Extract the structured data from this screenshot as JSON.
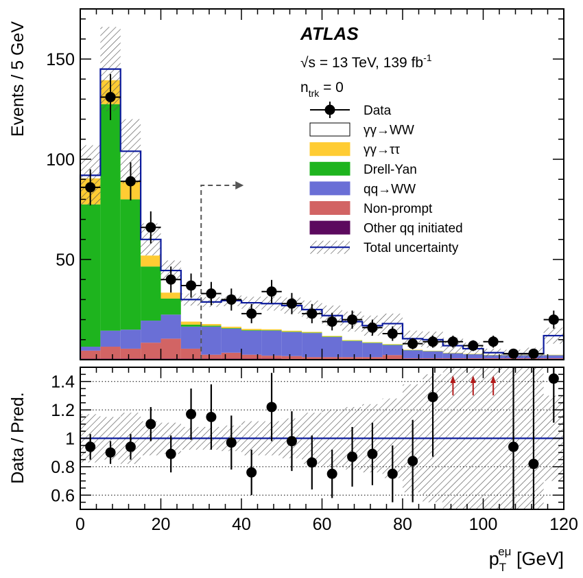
{
  "chart_data": [
    {
      "type": "bar",
      "stacked": true,
      "x_bins": [
        [
          0,
          5
        ],
        [
          5,
          10
        ],
        [
          10,
          15
        ],
        [
          15,
          20
        ],
        [
          20,
          25
        ],
        [
          25,
          30
        ],
        [
          30,
          35
        ],
        [
          35,
          40
        ],
        [
          40,
          45
        ],
        [
          45,
          50
        ],
        [
          50,
          55
        ],
        [
          55,
          60
        ],
        [
          60,
          65
        ],
        [
          65,
          70
        ],
        [
          70,
          75
        ],
        [
          75,
          80
        ],
        [
          80,
          85
        ],
        [
          85,
          90
        ],
        [
          90,
          95
        ],
        [
          95,
          100
        ],
        [
          100,
          105
        ],
        [
          105,
          110
        ],
        [
          110,
          115
        ],
        [
          115,
          120
        ]
      ],
      "series": [
        {
          "name": "Other qq initiated",
          "color": "#5c0a5e",
          "values": [
            0.5,
            0.5,
            0.5,
            0.5,
            0.5,
            0.5,
            0.5,
            0.5,
            0.5,
            0.5,
            0.3,
            0.3,
            0.3,
            0.3,
            0.3,
            0.3,
            0.2,
            0.2,
            0.2,
            0.2,
            0.2,
            0.2,
            0.2,
            0.2
          ]
        },
        {
          "name": "Non-prompt",
          "color": "#d26464",
          "values": [
            4,
            6,
            5,
            8,
            10,
            5,
            2,
            3,
            2,
            1.5,
            1.5,
            1,
            1,
            1,
            1,
            2,
            0.5,
            0.5,
            0.5,
            0.5,
            0.5,
            0.5,
            0.5,
            0.5
          ]
        },
        {
          "name": "qq→WW",
          "color": "#6a6fd6",
          "values": [
            2,
            8,
            9.5,
            11,
            12,
            11,
            14,
            12,
            12,
            12.5,
            12,
            12,
            10,
            8,
            7,
            5,
            4,
            3.5,
            2.5,
            2,
            1.5,
            1.5,
            1.5,
            1.5
          ]
        },
        {
          "name": "Drell-Yan",
          "color": "#1eb41e",
          "values": [
            71,
            113,
            65,
            27,
            8,
            1,
            0.5,
            0.3,
            0.3,
            0.2,
            0.2,
            0.2,
            0.2,
            0.2,
            0.2,
            0.2,
            0.1,
            0.1,
            0.1,
            0.1,
            0.1,
            0.1,
            0.1,
            0.1
          ]
        },
        {
          "name": "γγ→ττ",
          "color": "#ffcc33",
          "values": [
            13,
            12,
            9,
            5.5,
            3,
            1.5,
            0.8,
            0.7,
            0.6,
            0.5,
            0.5,
            0.4,
            0.4,
            0.3,
            0.3,
            0.3,
            0.2,
            0.2,
            0.2,
            0.2,
            0.2,
            0.2,
            0.2,
            0.2
          ]
        },
        {
          "name": "γγ→WW",
          "color": "#ffffff",
          "values": [
            1.5,
            5.5,
            15,
            8,
            11,
            11,
            11,
            13,
            13,
            12.8,
            12.5,
            11.1,
            10.1,
            9.2,
            8.2,
            10.2,
            5.5,
            5.5,
            3.5,
            2.5,
            1,
            0.5,
            0.5,
            9.5
          ]
        }
      ],
      "total_uncertainty": [
        15,
        21,
        16,
        8,
        5,
        3,
        2.5,
        2.8,
        3,
        3.5,
        4,
        4.5,
        5,
        5,
        5,
        5,
        4,
        4,
        4,
        3,
        2,
        2,
        3,
        4
      ],
      "data": {
        "name": "Data",
        "values": [
          86,
          131,
          89,
          66,
          40,
          37,
          33,
          30,
          23,
          34,
          28,
          23,
          19,
          20,
          16,
          13,
          8,
          9,
          9,
          7,
          9,
          3,
          3,
          20
        ],
        "errors": [
          9,
          11.5,
          9.5,
          8,
          6.5,
          6,
          5.8,
          5.5,
          4.8,
          5.8,
          5.3,
          4.8,
          4.4,
          4.5,
          4,
          3.6,
          2.8,
          3,
          3,
          2.7,
          3,
          1.7,
          1.7,
          4.5
        ]
      },
      "legend": [
        {
          "label": "Data",
          "style": "marker"
        },
        {
          "label": "γγ→WW",
          "style": "box",
          "color": "#ffffff"
        },
        {
          "label": "γγ→ττ",
          "style": "box",
          "color": "#ffcc33"
        },
        {
          "label": "Drell-Yan",
          "style": "box",
          "color": "#1eb41e"
        },
        {
          "label": "qq→WW",
          "style": "box",
          "color": "#6a6fd6"
        },
        {
          "label": "Non-prompt",
          "style": "box",
          "color": "#d26464"
        },
        {
          "label": "Other qq initiated",
          "style": "box",
          "color": "#5c0a5e"
        },
        {
          "label": "Total uncertainty",
          "style": "hatch"
        }
      ],
      "ylabel": "Events / 5 GeV",
      "ylim": [
        0,
        175
      ],
      "yticks": [
        50,
        100,
        150
      ],
      "cut_arrow_x": 30,
      "cut_arrow_y": 87,
      "annotations": {
        "experiment": "ATLAS",
        "energy": "√s = 13 TeV, 139 fb",
        "energy_sup": "-1",
        "ntrk_n": "n",
        "ntrk_sub": "trk",
        "ntrk_rest": " = 0"
      },
      "total_line_color": "#0b1a9c"
    },
    {
      "type": "scatter",
      "ylabel": "Data / Pred.",
      "xlabel_main": "p",
      "xlabel_sub": "T",
      "xlabel_sup": "eμ",
      "xlabel_unit": " [GeV]",
      "xlim": [
        0,
        120
      ],
      "xticks": [
        0,
        20,
        40,
        60,
        80,
        100,
        120
      ],
      "ylim": [
        0.5,
        1.5
      ],
      "yticks": [
        0.6,
        0.8,
        1,
        1.2,
        1.4
      ],
      "ytick_labels": [
        "0.6",
        "0.8",
        "1",
        "1.2",
        "1.4"
      ],
      "x": [
        2.5,
        7.5,
        12.5,
        17.5,
        22.5,
        27.5,
        32.5,
        37.5,
        42.5,
        47.5,
        52.5,
        57.5,
        62.5,
        67.5,
        72.5,
        77.5,
        82.5,
        87.5,
        107.5,
        112.5,
        117.5
      ],
      "ratio": [
        0.94,
        0.9,
        0.94,
        1.1,
        0.89,
        1.17,
        1.15,
        0.97,
        0.76,
        1.22,
        0.98,
        0.83,
        0.75,
        0.87,
        0.89,
        0.75,
        0.84,
        1.29,
        0.94,
        0.82,
        1.42
      ],
      "ratio_err": [
        0.09,
        0.08,
        0.09,
        0.12,
        0.13,
        0.18,
        0.23,
        0.19,
        0.16,
        0.24,
        0.21,
        0.19,
        0.17,
        0.21,
        0.22,
        0.2,
        0.29,
        0.42,
        0.75,
        0.8,
        0.31
      ],
      "overflow_arrows_x": [
        92.5,
        97.5,
        102.5
      ],
      "band": [
        0.17,
        0.15,
        0.18,
        0.12,
        0.11,
        0.08,
        0.08,
        0.09,
        0.12,
        0.12,
        0.14,
        0.18,
        0.2,
        0.22,
        0.24,
        0.28,
        0.38,
        0.45,
        0.5,
        0.5,
        0.5,
        0.5,
        0.5,
        0.3
      ],
      "reference": 1
    }
  ]
}
